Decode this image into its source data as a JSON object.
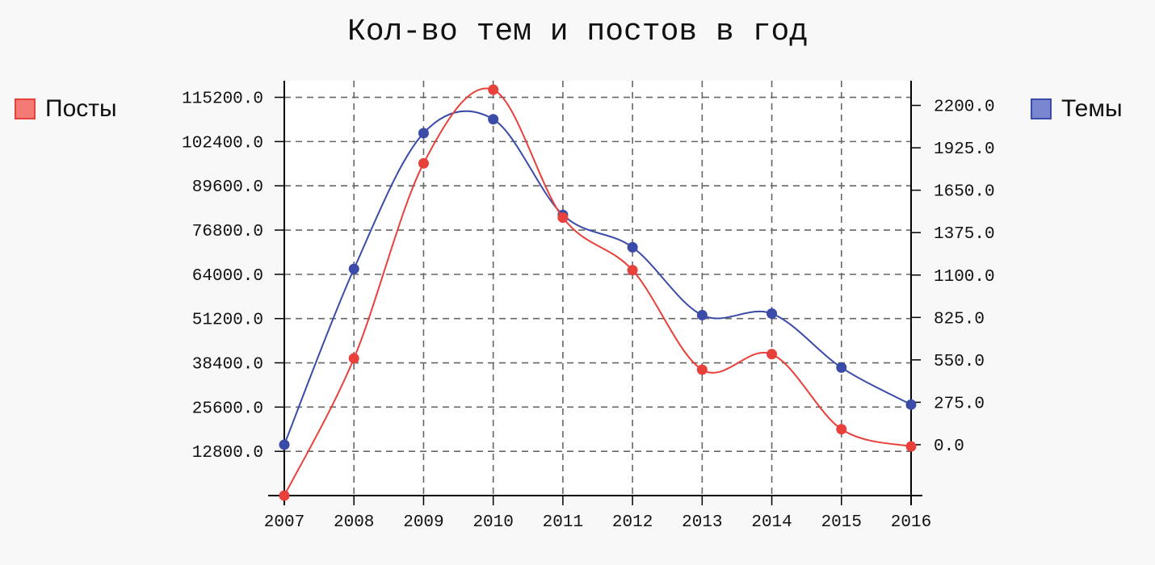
{
  "chart_data": {
    "type": "line",
    "title": "Кол-во тем и постов в год",
    "categories": [
      "2007",
      "2008",
      "2009",
      "2010",
      "2011",
      "2012",
      "2013",
      "2014",
      "2015",
      "2016"
    ],
    "y_left": {
      "ticks": [
        "12800.0",
        "25600.0",
        "38400.0",
        "51200.0",
        "64000.0",
        "76800.0",
        "89600.0",
        "102400.0",
        "115200.0"
      ],
      "ylim": [
        0,
        120000
      ]
    },
    "y_right": {
      "ticks": [
        "0.0",
        "275.0",
        "550.0",
        "825.0",
        "1100.0",
        "1375.0",
        "1650.0",
        "1925.0",
        "2200.0"
      ],
      "ylim": [
        -330,
        2360
      ]
    },
    "grid": true,
    "legend": {
      "posts_position": "left",
      "themes_position": "right"
    },
    "series": [
      {
        "name": "Посты",
        "axis": "left",
        "color": "#e8403a",
        "fill": "#f47a75",
        "values": [
          0,
          39700,
          96100,
          117400,
          80400,
          65200,
          36400,
          40900,
          19200,
          14200
        ]
      },
      {
        "name": "Темы",
        "axis": "right",
        "color": "#3b4ba8",
        "fill": "#7a86cf",
        "values": [
          0,
          1140,
          2020,
          2110,
          1490,
          1280,
          840,
          850,
          500,
          260
        ]
      }
    ]
  }
}
